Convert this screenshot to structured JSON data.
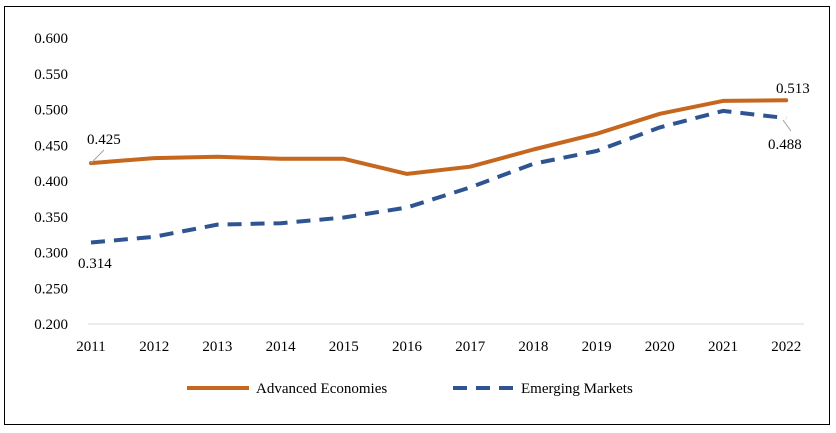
{
  "chart_data": {
    "type": "line",
    "title": "",
    "xlabel": "",
    "ylabel": "",
    "x": [
      "2011",
      "2012",
      "2013",
      "2014",
      "2015",
      "2016",
      "2017",
      "2018",
      "2019",
      "2020",
      "2021",
      "2022"
    ],
    "ylim": [
      0.2,
      0.6
    ],
    "yticks": [
      "0.200",
      "0.250",
      "0.300",
      "0.350",
      "0.400",
      "0.450",
      "0.500",
      "0.550",
      "0.600"
    ],
    "grid": false,
    "legend_position": "bottom",
    "series": [
      {
        "name": "Advanced Economies",
        "color": "#C5671E",
        "style": "solid",
        "values": [
          0.425,
          0.432,
          0.434,
          0.431,
          0.431,
          0.41,
          0.42,
          0.444,
          0.466,
          0.494,
          0.512,
          0.513
        ]
      },
      {
        "name": "Emerging Markets",
        "color": "#2F5492",
        "style": "dashed",
        "values": [
          0.314,
          0.322,
          0.339,
          0.341,
          0.349,
          0.363,
          0.391,
          0.424,
          0.442,
          0.475,
          0.498,
          0.488
        ]
      }
    ],
    "annotations": [
      {
        "series": 0,
        "index": 0,
        "text": "0.425"
      },
      {
        "series": 0,
        "index": 11,
        "text": "0.513"
      },
      {
        "series": 1,
        "index": 0,
        "text": "0.314"
      },
      {
        "series": 1,
        "index": 11,
        "text": "0.488"
      }
    ]
  }
}
